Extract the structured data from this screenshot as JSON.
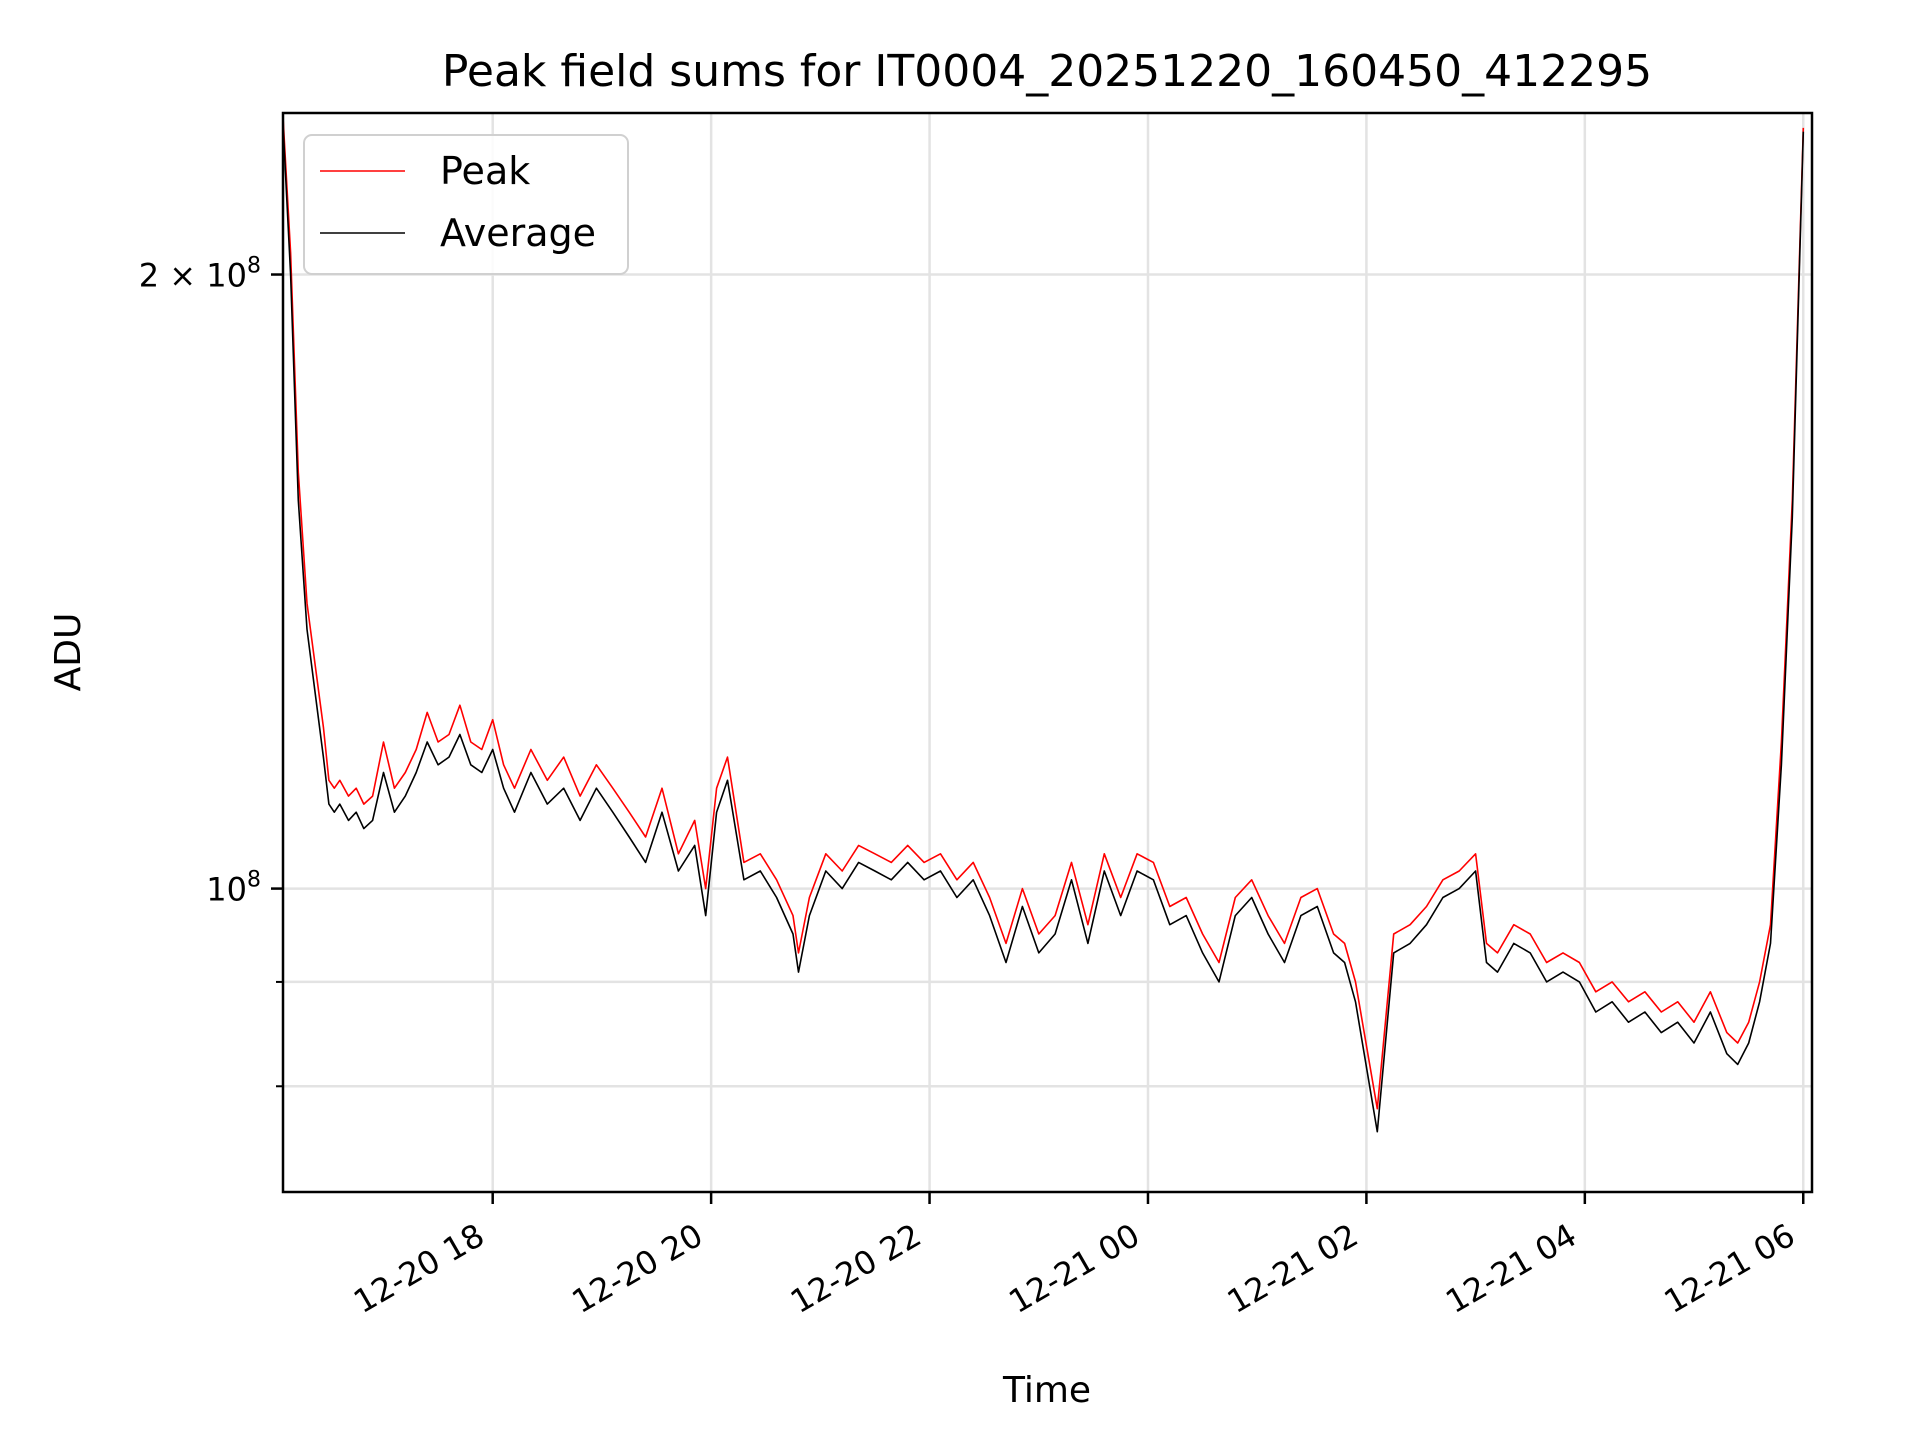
{
  "chart_data": {
    "type": "line",
    "title": "Peak field sums for IT0004_20251220_160450_412295",
    "xlabel": "Time",
    "ylabel": "ADU",
    "yscale": "log",
    "ylim": [
      71000000,
      240000000
    ],
    "grid": true,
    "legend_placement": "top-left",
    "x_range_hours": [
      -1.92,
      12.08
    ],
    "x_ticks": [
      {
        "hour": 0,
        "label": "12-20 18"
      },
      {
        "hour": 2,
        "label": "12-20 20"
      },
      {
        "hour": 4,
        "label": "12-20 22"
      },
      {
        "hour": 6,
        "label": "12-21 00"
      },
      {
        "hour": 8,
        "label": "12-21 02"
      },
      {
        "hour": 10,
        "label": "12-21 04"
      },
      {
        "hour": 12,
        "label": "12-21 06"
      }
    ],
    "y_ticks": [
      {
        "value": 200000000,
        "label_base": "2 × 10",
        "label_exp": "8"
      },
      {
        "value": 100000000,
        "label_base": "10",
        "label_exp": "8"
      }
    ],
    "y_minor_ticks": [
      80000000,
      90000000
    ],
    "x_hours": [
      -1.92,
      -1.85,
      -1.78,
      -1.7,
      -1.62,
      -1.55,
      -1.5,
      -1.45,
      -1.4,
      -1.32,
      -1.25,
      -1.18,
      -1.1,
      -1.0,
      -0.9,
      -0.8,
      -0.7,
      -0.6,
      -0.5,
      -0.4,
      -0.3,
      -0.2,
      -0.1,
      0.0,
      0.1,
      0.2,
      0.35,
      0.5,
      0.65,
      0.8,
      0.95,
      1.1,
      1.25,
      1.4,
      1.55,
      1.7,
      1.85,
      1.95,
      2.05,
      2.15,
      2.3,
      2.45,
      2.6,
      2.75,
      2.8,
      2.9,
      3.05,
      3.2,
      3.35,
      3.5,
      3.65,
      3.8,
      3.95,
      4.1,
      4.25,
      4.4,
      4.55,
      4.7,
      4.85,
      5.0,
      5.15,
      5.3,
      5.45,
      5.6,
      5.75,
      5.9,
      6.05,
      6.2,
      6.35,
      6.5,
      6.65,
      6.8,
      6.95,
      7.1,
      7.25,
      7.4,
      7.55,
      7.7,
      7.8,
      7.9,
      7.98,
      8.1,
      8.25,
      8.4,
      8.55,
      8.7,
      8.85,
      9.0,
      9.1,
      9.2,
      9.35,
      9.5,
      9.65,
      9.8,
      9.95,
      10.1,
      10.25,
      10.4,
      10.55,
      10.7,
      10.85,
      11.0,
      11.15,
      11.3,
      11.4,
      11.5,
      11.6,
      11.7,
      11.8,
      11.9,
      12.0
    ],
    "series": [
      {
        "name": "Peak",
        "color": "#ff0000",
        "values": [
          239000000,
          205000000,
          160000000,
          138000000,
          128000000,
          120000000,
          113000000,
          112000000,
          113000000,
          111000000,
          112000000,
          110000000,
          111000000,
          118000000,
          112000000,
          114000000,
          117000000,
          122000000,
          118000000,
          119000000,
          123000000,
          118000000,
          117000000,
          121000000,
          115000000,
          112000000,
          117000000,
          113000000,
          116000000,
          111000000,
          115000000,
          112000000,
          109000000,
          106000000,
          112000000,
          104000000,
          108000000,
          100000000,
          112000000,
          116000000,
          103000000,
          104000000,
          101000000,
          97000000,
          93000000,
          99000000,
          104000000,
          102000000,
          105000000,
          104000000,
          103000000,
          105000000,
          103000000,
          104000000,
          101000000,
          103000000,
          99000000,
          94000000,
          100000000,
          95000000,
          97000000,
          103000000,
          96000000,
          104000000,
          99000000,
          104000000,
          103000000,
          98000000,
          99000000,
          95000000,
          92000000,
          99000000,
          101000000,
          97000000,
          94000000,
          99000000,
          100000000,
          95000000,
          94000000,
          90000000,
          85000000,
          78000000,
          95000000,
          96000000,
          98000000,
          101000000,
          102000000,
          104000000,
          94000000,
          93000000,
          96000000,
          95000000,
          92000000,
          93000000,
          92000000,
          89000000,
          90000000,
          88000000,
          89000000,
          87000000,
          88000000,
          86000000,
          89000000,
          85000000,
          84000000,
          86000000,
          90000000,
          96000000,
          118000000,
          155000000,
          236000000
        ]
      },
      {
        "name": "Average",
        "color": "#000000",
        "values": [
          237000000,
          200000000,
          155000000,
          134000000,
          124000000,
          116000000,
          110000000,
          109000000,
          110000000,
          108000000,
          109000000,
          107000000,
          108000000,
          114000000,
          109000000,
          111000000,
          114000000,
          118000000,
          115000000,
          116000000,
          119000000,
          115000000,
          114000000,
          117000000,
          112000000,
          109000000,
          114000000,
          110000000,
          112000000,
          108000000,
          112000000,
          109000000,
          106000000,
          103000000,
          109000000,
          102000000,
          105000000,
          97000000,
          109000000,
          113000000,
          101000000,
          102000000,
          99000000,
          95000000,
          91000000,
          97000000,
          102000000,
          100000000,
          103000000,
          102000000,
          101000000,
          103000000,
          101000000,
          102000000,
          99000000,
          101000000,
          97000000,
          92000000,
          98000000,
          93000000,
          95000000,
          101000000,
          94000000,
          102000000,
          97000000,
          102000000,
          101000000,
          96000000,
          97000000,
          93000000,
          90000000,
          97000000,
          99000000,
          95000000,
          92000000,
          97000000,
          98000000,
          93000000,
          92000000,
          88000000,
          83000000,
          76000000,
          93000000,
          94000000,
          96000000,
          99000000,
          100000000,
          102000000,
          92000000,
          91000000,
          94000000,
          93000000,
          90000000,
          91000000,
          90000000,
          87000000,
          88000000,
          86000000,
          87000000,
          85000000,
          86000000,
          84000000,
          87000000,
          83000000,
          82000000,
          84000000,
          88000000,
          94000000,
          115000000,
          152000000,
          235000000
        ]
      }
    ]
  }
}
